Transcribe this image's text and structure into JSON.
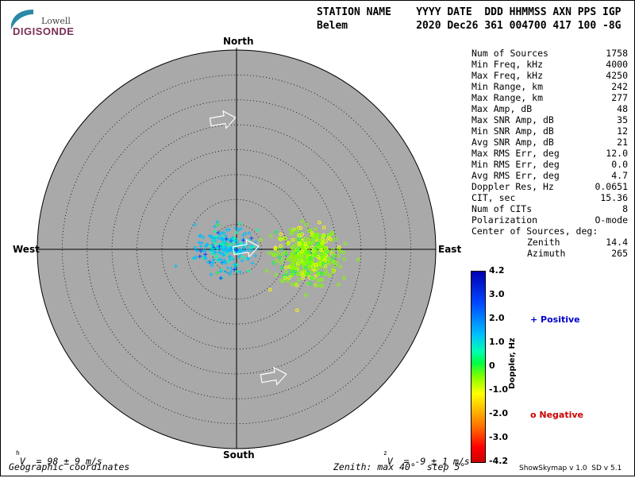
{
  "logo": {
    "line1": "Lowell",
    "line2": "DIGISONDE"
  },
  "header": {
    "line1": "STATION NAME    YYYY DATE  DDD HHMMSS AXN PPS IGP",
    "line2": "Belem           2020 Dec26 361 004700 417 100 -8G"
  },
  "stats": [
    {
      "label": "Num of Sources",
      "value": "1758"
    },
    {
      "label": "Min Freq, kHz",
      "value": "4000"
    },
    {
      "label": "Max Freq, kHz",
      "value": "4250"
    },
    {
      "label": "Min Range, km",
      "value": "242"
    },
    {
      "label": "Max Range, km",
      "value": "277"
    },
    {
      "label": "Max Amp, dB",
      "value": "48"
    },
    {
      "label": "Max SNR Amp, dB",
      "value": "35"
    },
    {
      "label": "Min SNR Amp, dB",
      "value": "12"
    },
    {
      "label": "Avg SNR Amp, dB",
      "value": "21"
    },
    {
      "label": "Max RMS Err, deg",
      "value": "12.0"
    },
    {
      "label": "Min RMS Err, deg",
      "value": "0.0"
    },
    {
      "label": "Avg RMS Err, deg",
      "value": "4.7"
    },
    {
      "label": "Doppler Res, Hz",
      "value": "0.0651"
    },
    {
      "label": "CIT, sec",
      "value": "15.36"
    },
    {
      "label": "Num of CITs",
      "value": "8"
    },
    {
      "label": "Polarization",
      "value": "O-mode"
    },
    {
      "label": "Center of Sources, deg:",
      "value": ""
    },
    {
      "label": "Zenith",
      "value": "14.4"
    },
    {
      "label": "Azimuth",
      "value": "265"
    }
  ],
  "compass": {
    "north": "North",
    "south": "South",
    "east": "East",
    "west": "West"
  },
  "footer": {
    "vh": "V  = 98 ± 9 m/s",
    "vh_sub": "h",
    "vz": "V  = -9 ± 1 m/s",
    "vz_sub": "z",
    "coords": "Geographic coordinates",
    "zenith": "Zenith: max 40°  step 5°",
    "version": "ShowSkymap v 1.0  SD v 5.1"
  },
  "colorbar": {
    "label": "Doppler, Hz",
    "ticks": [
      "4.2",
      "3.0",
      "2.0",
      "1.0",
      "0",
      "-1.0",
      "-2.0",
      "-3.0",
      "-4.2"
    ]
  },
  "legend": {
    "positive": "+ Positive",
    "negative": "o Negative"
  },
  "colors": {
    "disk": "#a9a9a9",
    "positive_text": "#0000cc",
    "negative_text": "#cc0000"
  },
  "chart_data": {
    "type": "scatter",
    "title": "",
    "projection": "polar-skymap",
    "zenith_max_deg": 40,
    "zenith_step_deg": 5,
    "color_scale": {
      "name": "Doppler, Hz",
      "min": -4.2,
      "max": 4.2
    },
    "series": [
      {
        "name": "Positive",
        "marker": "+",
        "cluster_center_east_deg": -2,
        "cluster_center_north_deg": 0,
        "approx_doppler_hz": 0.9
      },
      {
        "name": "Negative",
        "marker": "o",
        "cluster_center_east_deg": 14,
        "cluster_center_north_deg": -1,
        "approx_doppler_hz": -0.9
      }
    ]
  }
}
